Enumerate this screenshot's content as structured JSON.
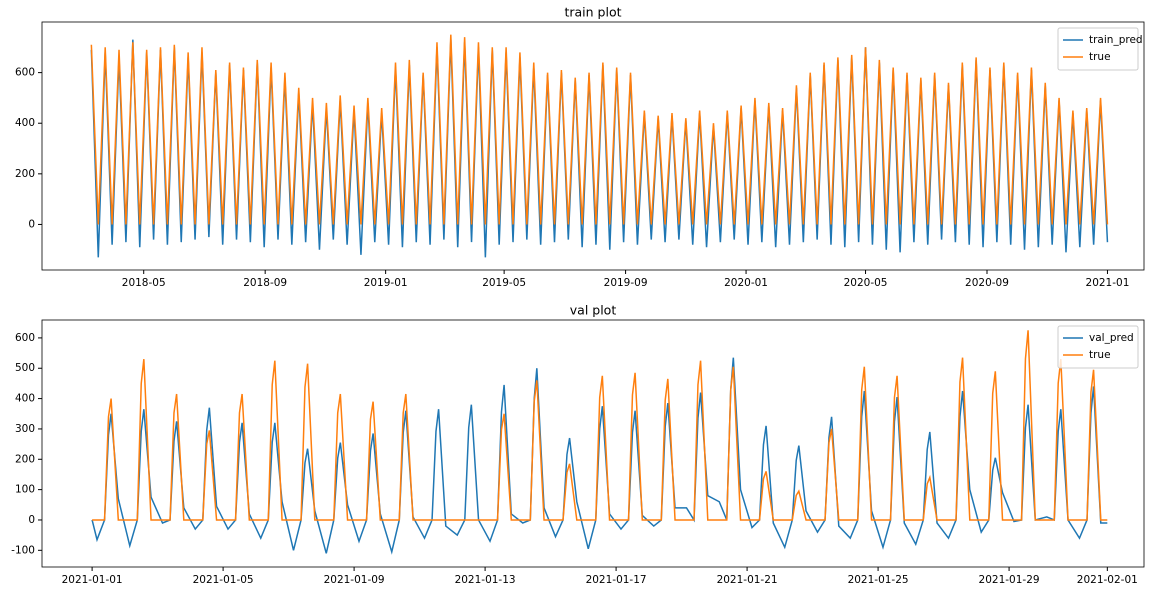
{
  "chart_data": [
    {
      "type": "line",
      "title": "train plot",
      "legend": "upper right",
      "xlim": [
        17,
        1133
      ],
      "ylim": [
        -180,
        800
      ],
      "xticks": [
        {
          "value": 120,
          "label": "2018-05"
        },
        {
          "value": 243,
          "label": "2018-09"
        },
        {
          "value": 365,
          "label": "2019-01"
        },
        {
          "value": 485,
          "label": "2019-05"
        },
        {
          "value": 608,
          "label": "2019-09"
        },
        {
          "value": 730,
          "label": "2020-01"
        },
        {
          "value": 851,
          "label": "2020-05"
        },
        {
          "value": 974,
          "label": "2020-09"
        },
        {
          "value": 1096,
          "label": "2021-01"
        }
      ],
      "yticks": [
        0,
        200,
        400,
        600
      ],
      "x": [
        67,
        74,
        81,
        88,
        95,
        102,
        109,
        116,
        123,
        130,
        137,
        144,
        151,
        158,
        165,
        172,
        179,
        186,
        193,
        200,
        207,
        214,
        221,
        228,
        235,
        242,
        249,
        256,
        263,
        270,
        277,
        284,
        291,
        298,
        305,
        312,
        319,
        326,
        333,
        340,
        347,
        354,
        361,
        368,
        375,
        382,
        389,
        396,
        403,
        410,
        417,
        424,
        431,
        438,
        445,
        452,
        459,
        466,
        473,
        480,
        487,
        494,
        501,
        508,
        515,
        522,
        529,
        536,
        543,
        550,
        557,
        564,
        571,
        578,
        585,
        592,
        599,
        606,
        613,
        620,
        627,
        634,
        641,
        648,
        655,
        662,
        669,
        676,
        683,
        690,
        697,
        704,
        711,
        718,
        725,
        732,
        739,
        746,
        753,
        760,
        767,
        774,
        781,
        788,
        795,
        802,
        809,
        816,
        823,
        830,
        837,
        844,
        851,
        858,
        865,
        872,
        879,
        886,
        893,
        900,
        907,
        914,
        921,
        928,
        935,
        942,
        949,
        956,
        963,
        970,
        977,
        984,
        991,
        998,
        1005,
        1012,
        1019,
        1026,
        1033,
        1040,
        1047,
        1054,
        1061,
        1068,
        1075,
        1082,
        1089,
        1096
      ],
      "series": [
        {
          "name": "train_pred",
          "color": "#1f77b4",
          "values": [
            690,
            -130,
            680,
            -80,
            660,
            -70,
            730,
            -90,
            680,
            -60,
            690,
            -80,
            700,
            -70,
            660,
            -60,
            680,
            -50,
            600,
            -80,
            630,
            -60,
            610,
            -70,
            640,
            -90,
            620,
            -60,
            580,
            -80,
            520,
            -70,
            480,
            -100,
            460,
            -60,
            490,
            -80,
            450,
            -120,
            480,
            -70,
            440,
            -80,
            620,
            -90,
            630,
            -70,
            590,
            -80,
            700,
            -60,
            730,
            -90,
            720,
            -70,
            700,
            -130,
            690,
            -80,
            680,
            -70,
            660,
            -60,
            620,
            -80,
            590,
            -70,
            600,
            -60,
            570,
            -90,
            590,
            -80,
            630,
            -100,
            610,
            -70,
            590,
            -80,
            440,
            -60,
            420,
            -70,
            430,
            -60,
            410,
            -80,
            440,
            -90,
            390,
            -70,
            440,
            -60,
            460,
            -80,
            490,
            -70,
            470,
            -90,
            450,
            -80,
            540,
            -70,
            590,
            -60,
            630,
            -80,
            650,
            -90,
            660,
            -70,
            700,
            -80,
            640,
            -100,
            610,
            -110,
            590,
            -70,
            570,
            -80,
            590,
            -60,
            550,
            -70,
            630,
            -80,
            650,
            -90,
            610,
            -70,
            630,
            -80,
            590,
            -100,
            610,
            -90,
            550,
            -80,
            490,
            -110,
            440,
            -90,
            450,
            -80,
            490,
            -70
          ]
        },
        {
          "name": "true",
          "color": "#ff7f0e",
          "values": [
            710,
            0,
            700,
            0,
            690,
            0,
            720,
            0,
            690,
            0,
            700,
            0,
            710,
            0,
            680,
            0,
            700,
            0,
            610,
            0,
            640,
            0,
            620,
            0,
            650,
            0,
            640,
            0,
            600,
            0,
            540,
            0,
            500,
            0,
            480,
            0,
            510,
            0,
            470,
            0,
            500,
            0,
            460,
            0,
            640,
            0,
            650,
            0,
            600,
            0,
            720,
            0,
            750,
            0,
            740,
            0,
            720,
            0,
            700,
            0,
            700,
            0,
            680,
            0,
            640,
            0,
            600,
            0,
            610,
            0,
            580,
            0,
            600,
            0,
            640,
            0,
            620,
            0,
            600,
            0,
            450,
            0,
            430,
            0,
            440,
            0,
            420,
            0,
            450,
            0,
            400,
            0,
            450,
            0,
            470,
            0,
            500,
            0,
            480,
            0,
            460,
            0,
            550,
            0,
            600,
            0,
            640,
            0,
            660,
            0,
            670,
            0,
            700,
            0,
            650,
            0,
            620,
            0,
            600,
            0,
            580,
            0,
            600,
            0,
            560,
            0,
            640,
            0,
            660,
            0,
            620,
            0,
            640,
            0,
            600,
            0,
            620,
            0,
            560,
            0,
            500,
            0,
            450,
            0,
            460,
            0,
            500,
            0
          ]
        }
      ]
    },
    {
      "type": "line",
      "title": "val plot",
      "legend": "upper right",
      "xlim": [
        -1.53,
        32.12
      ],
      "ylim": [
        -155,
        659
      ],
      "xticks": [
        {
          "value": 0,
          "label": "2021-01-01"
        },
        {
          "value": 4,
          "label": "2021-01-05"
        },
        {
          "value": 8,
          "label": "2021-01-09"
        },
        {
          "value": 12,
          "label": "2021-01-13"
        },
        {
          "value": 16,
          "label": "2021-01-17"
        },
        {
          "value": 20,
          "label": "2021-01-21"
        },
        {
          "value": 24,
          "label": "2021-01-25"
        },
        {
          "value": 28,
          "label": "2021-01-29"
        },
        {
          "value": 31,
          "label": "2021-02-01"
        }
      ],
      "yticks": [
        -100,
        0,
        100,
        200,
        300,
        400,
        500,
        600
      ],
      "x": [
        0,
        0.15,
        0.38,
        0.5,
        0.58,
        0.8,
        1.15,
        1.38,
        1.5,
        1.58,
        1.8,
        2.15,
        2.38,
        2.5,
        2.58,
        2.8,
        3.15,
        3.38,
        3.5,
        3.58,
        3.8,
        4.15,
        4.38,
        4.5,
        4.58,
        4.8,
        5.15,
        5.38,
        5.5,
        5.58,
        5.8,
        6.15,
        6.38,
        6.5,
        6.58,
        6.8,
        7.15,
        7.38,
        7.5,
        7.58,
        7.8,
        8.15,
        8.38,
        8.5,
        8.58,
        8.8,
        9.15,
        9.38,
        9.5,
        9.58,
        9.8,
        10.15,
        10.38,
        10.5,
        10.58,
        10.8,
        11.15,
        11.38,
        11.5,
        11.58,
        11.8,
        12.15,
        12.38,
        12.5,
        12.58,
        12.8,
        13.15,
        13.38,
        13.5,
        13.58,
        13.8,
        14.15,
        14.38,
        14.5,
        14.58,
        14.8,
        15.15,
        15.38,
        15.5,
        15.58,
        15.8,
        16.15,
        16.38,
        16.5,
        16.58,
        16.8,
        17.15,
        17.38,
        17.5,
        17.58,
        17.8,
        18.15,
        18.38,
        18.5,
        18.58,
        18.8,
        19.15,
        19.38,
        19.5,
        19.58,
        19.8,
        20.15,
        20.38,
        20.5,
        20.58,
        20.8,
        21.15,
        21.38,
        21.5,
        21.58,
        21.8,
        22.15,
        22.38,
        22.5,
        22.58,
        22.8,
        23.15,
        23.38,
        23.5,
        23.58,
        23.8,
        24.15,
        24.38,
        24.5,
        24.58,
        24.8,
        25.15,
        25.38,
        25.5,
        25.58,
        25.8,
        26.15,
        26.38,
        26.5,
        26.58,
        26.8,
        27.15,
        27.38,
        27.5,
        27.58,
        27.8,
        28.15,
        28.38,
        28.5,
        28.58,
        28.8,
        29.15,
        29.38,
        29.5,
        29.58,
        29.8,
        30.15,
        30.38,
        30.5,
        30.58,
        30.8,
        31
      ],
      "series": [
        {
          "name": "val_pred",
          "color": "#1f77b4",
          "values": [
            0,
            -65,
            0,
            280,
            350,
            70,
            -85,
            0,
            292,
            365,
            75,
            -10,
            0,
            260,
            325,
            40,
            -30,
            0,
            296,
            370,
            45,
            -30,
            0,
            256,
            320,
            20,
            -60,
            0,
            256,
            320,
            60,
            -100,
            0,
            188,
            235,
            30,
            -110,
            0,
            204,
            255,
            50,
            -70,
            0,
            228,
            285,
            20,
            -105,
            0,
            288,
            360,
            10,
            -60,
            0,
            292,
            365,
            -20,
            -50,
            0,
            304,
            380,
            0,
            -70,
            0,
            356,
            445,
            20,
            -10,
            0,
            400,
            500,
            40,
            -55,
            0,
            216,
            270,
            60,
            -95,
            0,
            300,
            375,
            20,
            -30,
            0,
            288,
            360,
            15,
            -20,
            0,
            308,
            385,
            40,
            40,
            0,
            336,
            420,
            80,
            60,
            0,
            428,
            535,
            100,
            -25,
            0,
            248,
            310,
            -10,
            -90,
            0,
            196,
            245,
            30,
            -40,
            0,
            272,
            340,
            -20,
            -60,
            0,
            340,
            425,
            30,
            -90,
            0,
            324,
            405,
            -10,
            -80,
            0,
            232,
            290,
            -10,
            -60,
            0,
            340,
            425,
            100,
            -40,
            0,
            164,
            205,
            90,
            -5,
            0,
            304,
            380,
            0,
            10,
            0,
            292,
            365,
            0,
            -60,
            0,
            352,
            440,
            -10,
            -10
          ]
        },
        {
          "name": "true",
          "color": "#ff7f0e",
          "values": [
            0,
            0,
            0,
            340,
            400,
            0,
            0,
            0,
            450,
            530,
            0,
            0,
            0,
            353,
            415,
            0,
            0,
            0,
            251,
            295,
            0,
            0,
            0,
            353,
            415,
            0,
            0,
            0,
            446,
            525,
            0,
            0,
            0,
            438,
            515,
            0,
            0,
            0,
            353,
            415,
            0,
            0,
            0,
            332,
            390,
            0,
            0,
            0,
            353,
            415,
            0,
            0,
            0,
            0,
            0,
            0,
            0,
            0,
            0,
            0,
            0,
            0,
            0,
            298,
            350,
            0,
            0,
            0,
            391,
            460,
            0,
            0,
            0,
            157,
            185,
            0,
            0,
            0,
            404,
            475,
            0,
            0,
            0,
            412,
            485,
            0,
            0,
            0,
            395,
            465,
            0,
            0,
            0,
            446,
            525,
            0,
            0,
            0,
            429,
            505,
            0,
            0,
            0,
            136,
            160,
            0,
            0,
            0,
            81,
            95,
            0,
            0,
            0,
            255,
            300,
            0,
            0,
            0,
            429,
            505,
            0,
            0,
            0,
            404,
            475,
            0,
            0,
            0,
            119,
            140,
            0,
            0,
            0,
            455,
            535,
            0,
            0,
            0,
            417,
            490,
            0,
            0,
            0,
            531,
            625,
            0,
            0,
            0,
            451,
            530,
            0,
            0,
            0,
            421,
            495,
            0,
            0
          ]
        }
      ]
    }
  ]
}
